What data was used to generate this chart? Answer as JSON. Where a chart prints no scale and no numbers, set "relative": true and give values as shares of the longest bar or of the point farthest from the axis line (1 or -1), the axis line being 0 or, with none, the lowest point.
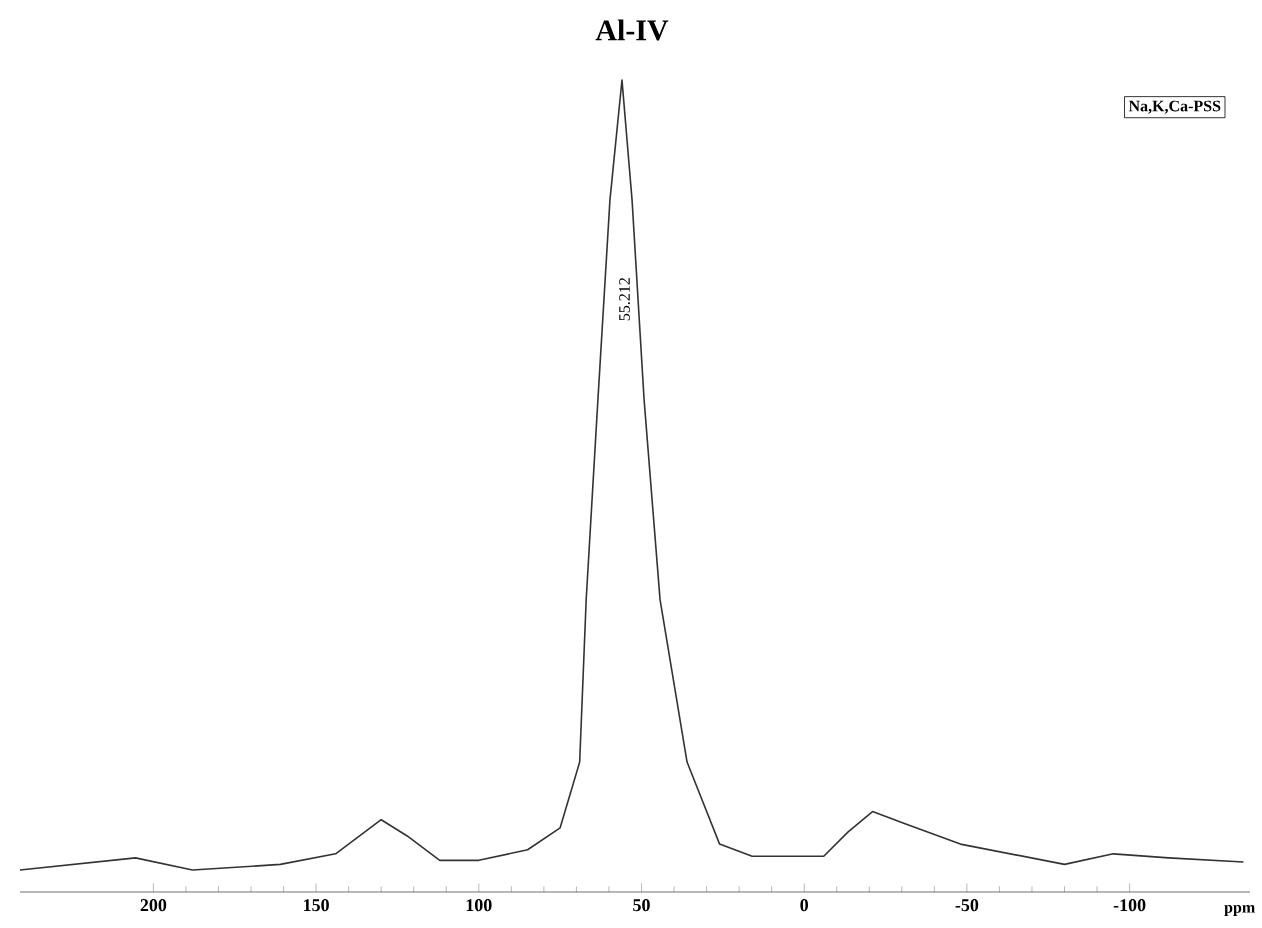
{
  "chart_data": {
    "type": "line",
    "title": "Al-IV",
    "xlabel": "ppm",
    "relative": true,
    "color": "#333333",
    "x": [
      241,
      205.5,
      188,
      161,
      144,
      130,
      122,
      112,
      100,
      85,
      75,
      69,
      67,
      63.4,
      59.7,
      56,
      52.9,
      49.2,
      44.3,
      36,
      26,
      16,
      -6,
      -13.5,
      -21,
      -31,
      -48,
      -80,
      -95,
      -112,
      -135
    ],
    "values": [
      0.027,
      0.042,
      0.027,
      0.034,
      0.047,
      0.089,
      0.069,
      0.039,
      0.039,
      0.052,
      0.079,
      0.16,
      0.36,
      0.606,
      0.852,
      1,
      0.852,
      0.606,
      0.36,
      0.16,
      0.059,
      0.044,
      0.044,
      0.074,
      0.099,
      0.084,
      0.059,
      0.034,
      0.047,
      0.042,
      0.037
    ],
    "xlim": [
      241,
      -137
    ],
    "xticks": [
      200,
      150,
      100,
      50,
      0,
      -50,
      -100
    ],
    "annotations": [
      {
        "text": "55.212",
        "x": 55.212,
        "y": 0.73
      },
      "Na,K,Ca-PSS"
    ]
  }
}
